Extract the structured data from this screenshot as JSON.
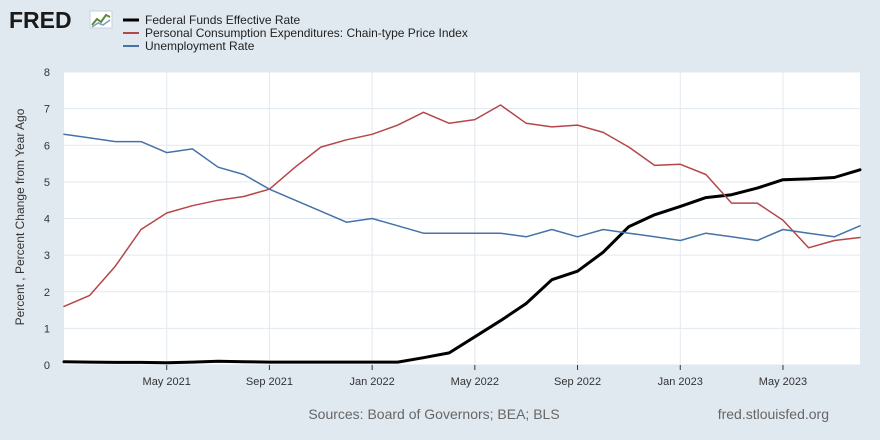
{
  "branding": {
    "logo_text": "FRED",
    "logo_icon": "chart-line-icon",
    "source_note": "Sources: Board of Governors; BEA; BLS",
    "site_url": "fred.stlouisfed.org"
  },
  "colors": {
    "background": "#e1e9f0",
    "plot_background": "#ffffff",
    "grid": "#e1e9f0"
  },
  "chart_data": {
    "type": "line",
    "title": "",
    "xlabel": "",
    "ylabel": "Percent , Percent Change from Year Ago",
    "ylim": [
      0,
      8
    ],
    "yticks": [
      0,
      1,
      2,
      3,
      4,
      5,
      6,
      7,
      8
    ],
    "xlim": [
      "2021-01",
      "2023-08"
    ],
    "xticks": [
      {
        "date": "2021-05",
        "label": "May 2021"
      },
      {
        "date": "2021-09",
        "label": "Sep 2021"
      },
      {
        "date": "2022-01",
        "label": "Jan 2022"
      },
      {
        "date": "2022-05",
        "label": "May 2022"
      },
      {
        "date": "2022-09",
        "label": "Sep 2022"
      },
      {
        "date": "2023-01",
        "label": "Jan 2023"
      },
      {
        "date": "2023-05",
        "label": "May 2023"
      }
    ],
    "grid": true,
    "legend_position": "top-left",
    "x": [
      "2021-01",
      "2021-02",
      "2021-03",
      "2021-04",
      "2021-05",
      "2021-06",
      "2021-07",
      "2021-08",
      "2021-09",
      "2021-10",
      "2021-11",
      "2021-12",
      "2022-01",
      "2022-02",
      "2022-03",
      "2022-04",
      "2022-05",
      "2022-06",
      "2022-07",
      "2022-08",
      "2022-09",
      "2022-10",
      "2022-11",
      "2022-12",
      "2023-01",
      "2023-02",
      "2023-03",
      "2023-04",
      "2023-05",
      "2023-06",
      "2023-07",
      "2023-08"
    ],
    "series": [
      {
        "name": "Federal Funds Effective Rate",
        "color": "#000000",
        "width": 3,
        "values": [
          0.09,
          0.08,
          0.07,
          0.07,
          0.06,
          0.08,
          0.1,
          0.09,
          0.08,
          0.08,
          0.08,
          0.08,
          0.08,
          0.08,
          0.2,
          0.33,
          0.77,
          1.21,
          1.68,
          2.33,
          2.56,
          3.08,
          3.78,
          4.1,
          4.33,
          4.57,
          4.65,
          4.83,
          5.06,
          5.08,
          5.12,
          5.33
        ]
      },
      {
        "name": "Personal Consumption Expenditures: Chain-type Price Index",
        "color": "#b5464a",
        "width": 1.5,
        "values": [
          1.6,
          1.9,
          2.7,
          3.7,
          4.15,
          4.35,
          4.5,
          4.6,
          4.8,
          5.4,
          5.95,
          6.15,
          6.3,
          6.55,
          6.9,
          6.6,
          6.7,
          7.1,
          6.6,
          6.5,
          6.55,
          6.35,
          5.95,
          5.45,
          5.48,
          5.2,
          4.42,
          4.42,
          3.95,
          3.2,
          3.4,
          3.48
        ]
      },
      {
        "name": "Unemployment Rate",
        "color": "#4572a7",
        "width": 1.5,
        "values": [
          6.3,
          6.2,
          6.1,
          6.1,
          5.8,
          5.9,
          5.4,
          5.2,
          4.8,
          4.5,
          4.2,
          3.9,
          4.0,
          3.8,
          3.6,
          3.6,
          3.6,
          3.6,
          3.5,
          3.7,
          3.5,
          3.7,
          3.6,
          3.5,
          3.4,
          3.6,
          3.5,
          3.4,
          3.7,
          3.6,
          3.5,
          3.8
        ]
      }
    ]
  }
}
